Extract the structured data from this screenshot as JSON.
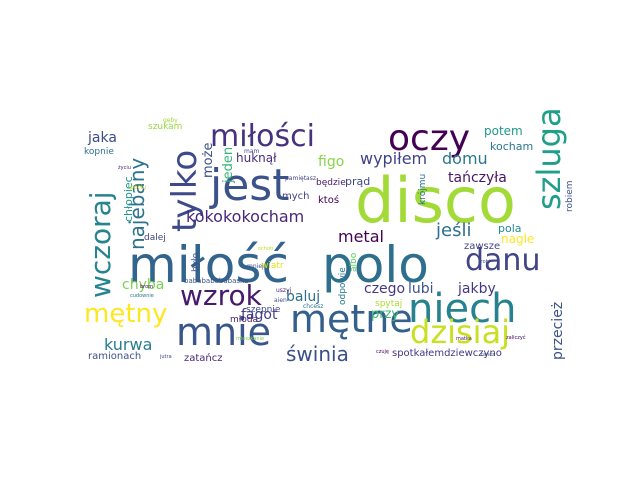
{
  "word_cloud": {
    "background": "#ffffff",
    "words": [
      {
        "text": "disco",
        "color": "#a2da37",
        "rotate": false
      },
      {
        "text": "miłość",
        "color": "#32648e",
        "rotate": false
      },
      {
        "text": "polo",
        "color": "#2e6f8e",
        "rotate": false
      },
      {
        "text": "jest",
        "color": "#3b528b",
        "rotate": false
      },
      {
        "text": "oczy",
        "color": "#440154",
        "rotate": false
      },
      {
        "text": "niech",
        "color": "#26828e",
        "rotate": false
      },
      {
        "text": "mnie",
        "color": "#39558c",
        "rotate": false
      },
      {
        "text": "mętne",
        "color": "#355f8d",
        "rotate": false
      },
      {
        "text": "dzisiaj",
        "color": "#c8e020",
        "rotate": false
      },
      {
        "text": "miłości",
        "color": "#46327e",
        "rotate": false
      },
      {
        "text": "tylko",
        "color": "#3e4989",
        "rotate": true
      },
      {
        "text": "szluga",
        "color": "#1f9f88",
        "rotate": true
      },
      {
        "text": "wczoraj",
        "color": "#25848e",
        "rotate": true
      },
      {
        "text": "danu",
        "color": "#414487",
        "rotate": false
      },
      {
        "text": "wzrok",
        "color": "#481a6c",
        "rotate": false
      },
      {
        "text": "mętny",
        "color": "#fde725",
        "rotate": false
      },
      {
        "text": "kokokokocham",
        "color": "#482878",
        "rotate": false
      },
      {
        "text": "wypiłem",
        "color": "#404387",
        "rotate": false
      },
      {
        "text": "domu",
        "color": "#2a788e",
        "rotate": false
      },
      {
        "text": "najebany",
        "color": "#2c728e",
        "rotate": true
      },
      {
        "text": "świnia",
        "color": "#3c4f8a",
        "rotate": false
      },
      {
        "text": "kurwa",
        "color": "#287d8e",
        "rotate": false
      },
      {
        "text": "metal",
        "color": "#440154",
        "rotate": false
      },
      {
        "text": "jeśli",
        "color": "#2d708e",
        "rotate": false
      },
      {
        "text": "tańczyła",
        "color": "#481668",
        "rotate": false
      },
      {
        "text": "przecież",
        "color": "#3b528b",
        "rotate": true
      },
      {
        "text": "figo",
        "color": "#86d549",
        "rotate": false
      },
      {
        "text": "jaka",
        "color": "#3e4a89",
        "rotate": false
      },
      {
        "text": "może",
        "color": "#3b528b",
        "rotate": true
      },
      {
        "text": "jeden",
        "color": "#35b779",
        "rotate": true
      },
      {
        "text": "huknął",
        "color": "#472c7a",
        "rotate": false
      },
      {
        "text": "chyba",
        "color": "#7ad151",
        "rotate": false
      },
      {
        "text": "baluj",
        "color": "#2d708e",
        "rotate": false
      },
      {
        "text": "fagot",
        "color": "#423f85",
        "rotate": false
      },
      {
        "text": "lubi",
        "color": "#3b528b",
        "rotate": false
      },
      {
        "text": "jakby",
        "color": "#453781",
        "rotate": false
      },
      {
        "text": "czego",
        "color": "#443a83",
        "rotate": false
      },
      {
        "text": "potem",
        "color": "#1f988b",
        "rotate": false
      },
      {
        "text": "kocham",
        "color": "#2a788e",
        "rotate": false
      },
      {
        "text": "kopnie",
        "color": "#2c728e",
        "rotate": false
      },
      {
        "text": "chłopiec",
        "color": "#1f948c",
        "rotate": true
      },
      {
        "text": "ramionach",
        "color": "#3b528b",
        "rotate": false
      },
      {
        "text": "zatańcz",
        "color": "#482878",
        "rotate": false
      },
      {
        "text": "spotkałemdziewczyno",
        "color": "#453781",
        "rotate": false
      },
      {
        "text": "przy",
        "color": "#3dbc74",
        "rotate": false
      },
      {
        "text": "pola",
        "color": "#238a8d",
        "rotate": false
      },
      {
        "text": "zawsze",
        "color": "#414487",
        "rotate": false
      },
      {
        "text": "nagle",
        "color": "#fde725",
        "rotate": false
      },
      {
        "text": "robiem",
        "color": "#3b528b",
        "rotate": true
      },
      {
        "text": "krójmu",
        "color": "#2c728e",
        "rotate": true
      },
      {
        "text": "szepnie",
        "color": "#3e4989",
        "rotate": false
      },
      {
        "text": "młoda",
        "color": "#481f70",
        "rotate": false
      },
      {
        "text": "będzie",
        "color": "#481a6c",
        "rotate": false
      },
      {
        "text": "prąd",
        "color": "#3e4989",
        "rotate": false
      },
      {
        "text": "mych",
        "color": "#423f85",
        "rotate": false
      },
      {
        "text": "ktoś",
        "color": "#440154",
        "rotate": false
      },
      {
        "text": "szukam",
        "color": "#95d840",
        "rotate": false
      },
      {
        "text": "dalej",
        "color": "#414487",
        "rotate": false
      },
      {
        "text": "było",
        "color": "#3b528b",
        "rotate": true
      },
      {
        "text": "wiatr",
        "color": "#dde318",
        "rotate": false
      },
      {
        "text": "albo",
        "color": "#5ec962",
        "rotate": true
      },
      {
        "text": "odpowie",
        "color": "#2a788e",
        "rotate": true
      },
      {
        "text": "spytaj",
        "color": "#aadc32",
        "rotate": false
      },
      {
        "text": "babababababaska",
        "color": "#3b528b",
        "rotate": false
      },
      {
        "text": "gęby",
        "color": "#a2da37",
        "rotate": false
      },
      {
        "text": "mniej",
        "color": "#3b528b",
        "rotate": false
      },
      {
        "text": "pamiętasz",
        "color": "#423f85",
        "rotate": false
      },
      {
        "text": "mam",
        "color": "#3e4a89",
        "rotate": false
      },
      {
        "text": "chcesz",
        "color": "#2c728e",
        "rotate": false
      },
      {
        "text": "życiu",
        "color": "#482475",
        "rotate": false
      },
      {
        "text": "pociu",
        "color": "#dde318",
        "rotate": false
      },
      {
        "text": "zrobi",
        "color": "#3b528b",
        "rotate": false
      },
      {
        "text": "zaliczyć",
        "color": "#440154",
        "rotate": false
      },
      {
        "text": "matka",
        "color": "#481a6c",
        "rotate": false
      },
      {
        "text": "jutra",
        "color": "#404387",
        "rotate": false
      },
      {
        "text": "mieszkanie",
        "color": "#7ad151",
        "rotate": false
      },
      {
        "text": "tańcz",
        "color": "#3b528b",
        "rotate": false
      },
      {
        "text": "ochoti",
        "color": "#bddf26",
        "rotate": false
      },
      {
        "text": "czuję",
        "color": "#440154",
        "rotate": false
      },
      {
        "text": "uszyj",
        "color": "#482878",
        "rotate": false
      },
      {
        "text": "aien",
        "color": "#3b528b",
        "rotate": false
      },
      {
        "text": "cudownie",
        "color": "#2c728e",
        "rotate": false
      },
      {
        "text": "brom",
        "color": "#440154",
        "rotate": false
      }
    ]
  }
}
